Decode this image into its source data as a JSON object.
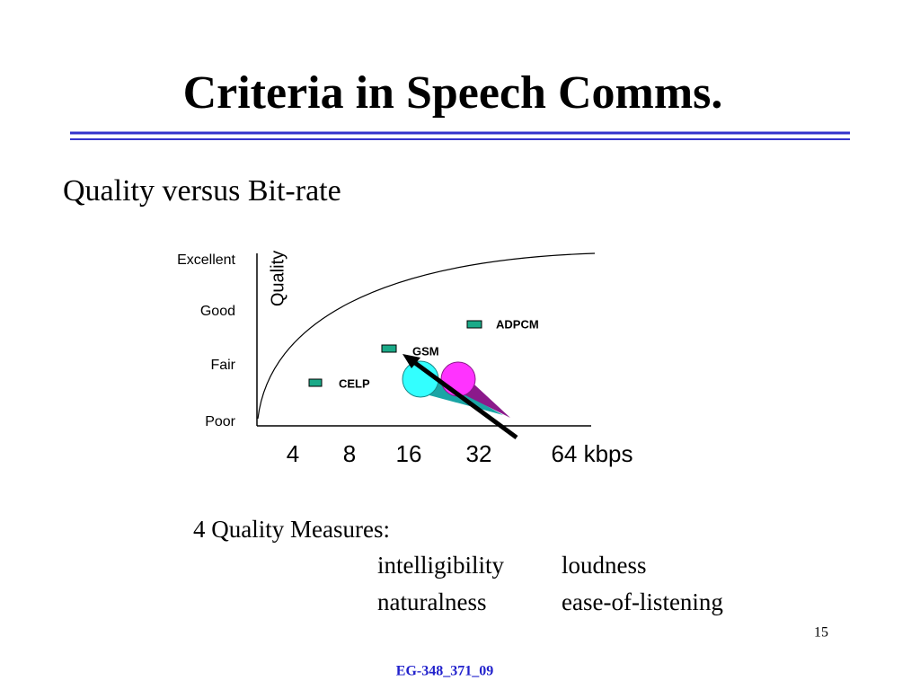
{
  "header": {
    "title": "Criteria in Speech Comms."
  },
  "subtitle": "Quality versus Bit-rate",
  "diagram": {
    "quality_levels": [
      "Excellent",
      "Good",
      "Fair",
      "Poor"
    ],
    "axis_label": "Quality",
    "rates": [
      "4",
      "8",
      "16",
      "32",
      "64 kbps"
    ],
    "coders": [
      "CELP",
      "GSM",
      "ADPCM"
    ]
  },
  "measures": {
    "heading": "4 Quality Measures:",
    "items": [
      [
        "intelligibility",
        "loudness"
      ],
      [
        "naturalness",
        "ease-of-listening"
      ]
    ]
  },
  "page_number": "15",
  "footer": "EG-348_371_09"
}
